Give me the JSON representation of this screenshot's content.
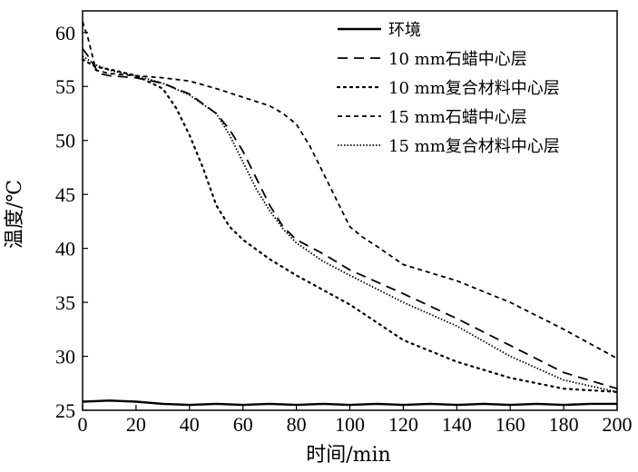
{
  "chart_data": {
    "type": "line",
    "xlabel": "时间/min",
    "ylabel": "温度/℃",
    "xlim": [
      0,
      200
    ],
    "ylim": [
      25,
      62
    ],
    "x_ticks": [
      0,
      20,
      40,
      60,
      80,
      100,
      120,
      140,
      160,
      180,
      200
    ],
    "y_ticks": [
      25,
      30,
      35,
      40,
      45,
      50,
      55,
      60
    ],
    "grid": false,
    "legend_position": "top-right",
    "series": [
      {
        "name": "环境",
        "style": "solid",
        "color": "#000000",
        "points": [
          [
            0,
            25.8
          ],
          [
            10,
            25.9
          ],
          [
            20,
            25.8
          ],
          [
            30,
            25.6
          ],
          [
            40,
            25.5
          ],
          [
            50,
            25.6
          ],
          [
            60,
            25.5
          ],
          [
            70,
            25.6
          ],
          [
            80,
            25.5
          ],
          [
            90,
            25.6
          ],
          [
            100,
            25.5
          ],
          [
            110,
            25.6
          ],
          [
            120,
            25.5
          ],
          [
            130,
            25.6
          ],
          [
            140,
            25.5
          ],
          [
            150,
            25.6
          ],
          [
            160,
            25.5
          ],
          [
            170,
            25.6
          ],
          [
            180,
            25.5
          ],
          [
            190,
            25.6
          ],
          [
            200,
            25.6
          ]
        ]
      },
      {
        "name": "10 mm石蜡中心层",
        "style": "long-dash",
        "color": "#000000",
        "points": [
          [
            0,
            58.5
          ],
          [
            3,
            57.5
          ],
          [
            6,
            56.2
          ],
          [
            10,
            56.0
          ],
          [
            20,
            55.8
          ],
          [
            30,
            55.3
          ],
          [
            40,
            54.3
          ],
          [
            50,
            52.5
          ],
          [
            55,
            51.0
          ],
          [
            60,
            49.0
          ],
          [
            65,
            46.5
          ],
          [
            70,
            44.0
          ],
          [
            75,
            42.0
          ],
          [
            80,
            40.8
          ],
          [
            90,
            39.5
          ],
          [
            100,
            38.0
          ],
          [
            120,
            35.8
          ],
          [
            140,
            33.5
          ],
          [
            160,
            31.0
          ],
          [
            180,
            28.5
          ],
          [
            200,
            27.0
          ]
        ]
      },
      {
        "name": "10 mm复合材料中心层",
        "style": "dotted",
        "color": "#000000",
        "points": [
          [
            0,
            57.5
          ],
          [
            5,
            56.8
          ],
          [
            10,
            56.6
          ],
          [
            20,
            56.0
          ],
          [
            30,
            54.8
          ],
          [
            35,
            53.0
          ],
          [
            40,
            50.5
          ],
          [
            45,
            47.5
          ],
          [
            50,
            44.0
          ],
          [
            55,
            42.0
          ],
          [
            60,
            40.8
          ],
          [
            70,
            39.0
          ],
          [
            80,
            37.5
          ],
          [
            100,
            34.8
          ],
          [
            120,
            31.5
          ],
          [
            140,
            29.5
          ],
          [
            160,
            28.0
          ],
          [
            180,
            27.0
          ],
          [
            200,
            26.7
          ]
        ]
      },
      {
        "name": "15 mm石蜡中心层",
        "style": "short-dash",
        "color": "#000000",
        "points": [
          [
            0,
            61.0
          ],
          [
            2,
            59.5
          ],
          [
            5,
            56.5
          ],
          [
            10,
            56.2
          ],
          [
            20,
            56.0
          ],
          [
            30,
            55.8
          ],
          [
            40,
            55.5
          ],
          [
            50,
            54.8
          ],
          [
            60,
            54.0
          ],
          [
            70,
            53.2
          ],
          [
            75,
            52.5
          ],
          [
            80,
            51.5
          ],
          [
            85,
            49.5
          ],
          [
            90,
            47.0
          ],
          [
            95,
            44.5
          ],
          [
            100,
            42.0
          ],
          [
            105,
            41.0
          ],
          [
            110,
            40.2
          ],
          [
            120,
            38.5
          ],
          [
            140,
            37.0
          ],
          [
            160,
            35.0
          ],
          [
            180,
            32.5
          ],
          [
            200,
            29.8
          ]
        ]
      },
      {
        "name": "15 mm复合材料中心层",
        "style": "fine-dotted",
        "color": "#000000",
        "points": [
          [
            0,
            57.8
          ],
          [
            5,
            57.0
          ],
          [
            10,
            56.5
          ],
          [
            20,
            56.0
          ],
          [
            30,
            55.3
          ],
          [
            40,
            54.2
          ],
          [
            50,
            52.5
          ],
          [
            55,
            50.5
          ],
          [
            60,
            48.0
          ],
          [
            65,
            45.5
          ],
          [
            70,
            43.5
          ],
          [
            75,
            41.8
          ],
          [
            80,
            40.5
          ],
          [
            90,
            38.8
          ],
          [
            100,
            37.5
          ],
          [
            120,
            35.0
          ],
          [
            140,
            32.8
          ],
          [
            160,
            30.0
          ],
          [
            180,
            27.8
          ],
          [
            200,
            26.7
          ]
        ]
      }
    ]
  }
}
